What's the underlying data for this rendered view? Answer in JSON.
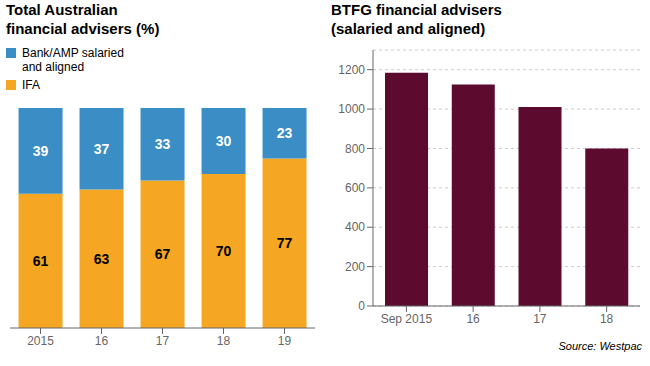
{
  "chart_data": [
    {
      "type": "bar",
      "title": "Total Australian\nfinancial advisers (%)",
      "categories": [
        "2015",
        "16",
        "17",
        "18",
        "19"
      ],
      "series": [
        {
          "name": "IFA",
          "color": "#f5a623",
          "values": [
            61,
            63,
            67,
            70,
            77
          ]
        },
        {
          "name": "Bank/AMP salaried\nand aligned",
          "color": "#3a8ec5",
          "values": [
            39,
            37,
            33,
            30,
            23
          ]
        }
      ],
      "stacked": true,
      "data_labels": true,
      "ylim": [
        0,
        100
      ],
      "tick_labels": "x",
      "grid": false,
      "legend": "top"
    },
    {
      "type": "bar",
      "title": "BTFG financial advisers\n(salaried and aligned)",
      "categories": [
        "Sep 2015",
        "16",
        "17",
        "18"
      ],
      "values": [
        1185,
        1125,
        1010,
        800
      ],
      "color": "#5c0a2e",
      "ylim": [
        0,
        1300
      ],
      "yticks": [
        0,
        200,
        400,
        600,
        800,
        1000,
        1200
      ],
      "grid": true,
      "annotations": [
        "Source: Westpac"
      ]
    }
  ]
}
